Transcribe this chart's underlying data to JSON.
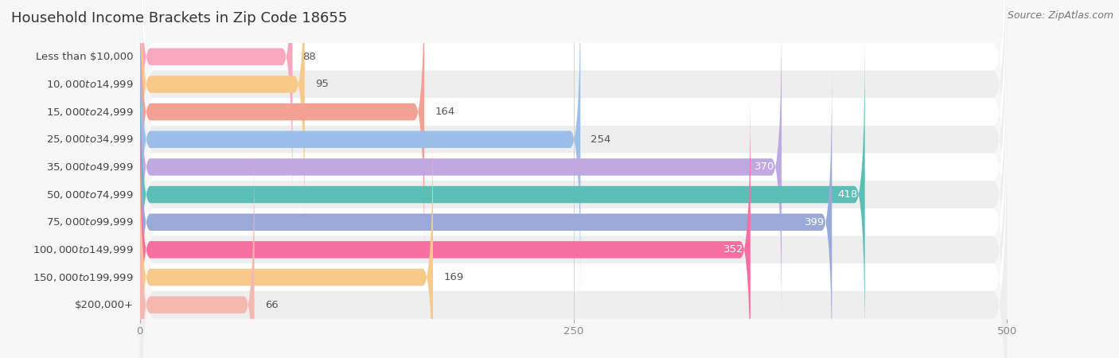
{
  "title": "Household Income Brackets in Zip Code 18655",
  "source": "Source: ZipAtlas.com",
  "categories": [
    "Less than $10,000",
    "$10,000 to $14,999",
    "$15,000 to $24,999",
    "$25,000 to $34,999",
    "$35,000 to $49,999",
    "$50,000 to $74,999",
    "$75,000 to $99,999",
    "$100,000 to $149,999",
    "$150,000 to $199,999",
    "$200,000+"
  ],
  "values": [
    88,
    95,
    164,
    254,
    370,
    418,
    399,
    352,
    169,
    66
  ],
  "bar_colors": [
    "#f9a8c0",
    "#f9c98a",
    "#f4a093",
    "#9bbfe8",
    "#c0a8e0",
    "#5bbfb8",
    "#9aaad8",
    "#f76fa0",
    "#f9c98a",
    "#f4b8b0"
  ],
  "label_colors_inside": [
    false,
    false,
    false,
    false,
    true,
    true,
    true,
    true,
    false,
    false
  ],
  "bg_color": "#f7f7f7",
  "row_even_color": "#ffffff",
  "row_odd_color": "#eeeeee",
  "xlim": [
    0,
    500
  ],
  "xticks": [
    0,
    250,
    500
  ],
  "title_fontsize": 13,
  "label_fontsize": 9.5,
  "value_fontsize": 9.5,
  "source_fontsize": 9
}
